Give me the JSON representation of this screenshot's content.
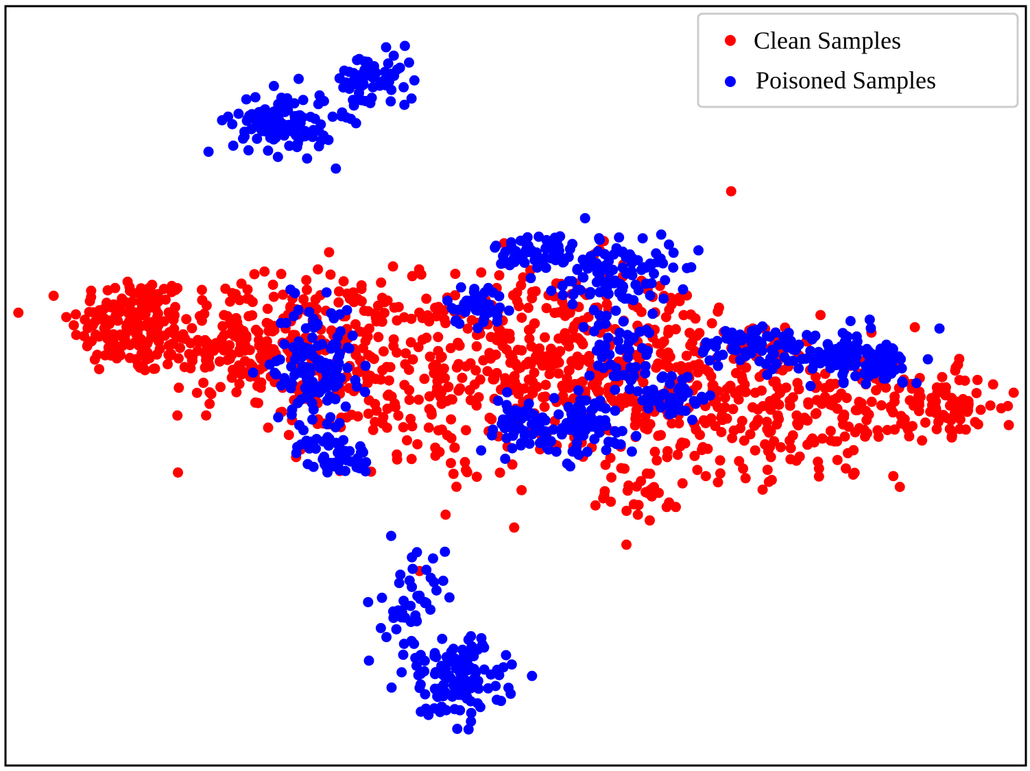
{
  "chart_data": {
    "type": "scatter",
    "title": "",
    "xlabel": "",
    "ylabel": "",
    "axes_visible": false,
    "grid": false,
    "xlim": [
      0,
      100
    ],
    "ylim": [
      0,
      74
    ],
    "legend": {
      "placement": "top-right",
      "entries": [
        "Clean Samples",
        "Poisoned Samples"
      ]
    },
    "colors": {
      "clean": "#ff0000",
      "poisoned": "#0000ff"
    },
    "series": [
      {
        "name": "Clean Samples",
        "color": "#ff0000",
        "clusters": [
          {
            "cx": 12,
            "cy": 43,
            "sx": 3.0,
            "sy": 2.5,
            "n": 170
          },
          {
            "cx": 22,
            "cy": 41,
            "sx": 3.5,
            "sy": 3.0,
            "n": 160
          },
          {
            "cx": 32,
            "cy": 40,
            "sx": 4.0,
            "sy": 4.0,
            "n": 170
          },
          {
            "cx": 43,
            "cy": 38,
            "sx": 5.0,
            "sy": 5.0,
            "n": 190
          },
          {
            "cx": 54,
            "cy": 39,
            "sx": 5.0,
            "sy": 5.0,
            "n": 190
          },
          {
            "cx": 63,
            "cy": 39,
            "sx": 5.0,
            "sy": 5.0,
            "n": 170
          },
          {
            "cx": 73,
            "cy": 36,
            "sx": 5.0,
            "sy": 4.0,
            "n": 160
          },
          {
            "cx": 84,
            "cy": 35,
            "sx": 5.0,
            "sy": 3.0,
            "n": 130
          },
          {
            "cx": 93,
            "cy": 35,
            "sx": 2.5,
            "sy": 1.5,
            "n": 60
          },
          {
            "cx": 62,
            "cy": 26,
            "sx": 2.5,
            "sy": 2.0,
            "n": 30
          }
        ]
      },
      {
        "name": "Poisoned Samples",
        "color": "#0000ff",
        "clusters": [
          {
            "cx": 27,
            "cy": 63,
            "sx": 2.5,
            "sy": 1.6,
            "n": 110
          },
          {
            "cx": 36,
            "cy": 67,
            "sx": 2.0,
            "sy": 1.4,
            "n": 70
          },
          {
            "cx": 30,
            "cy": 39,
            "sx": 2.0,
            "sy": 3.0,
            "n": 130
          },
          {
            "cx": 32,
            "cy": 30,
            "sx": 1.8,
            "sy": 1.0,
            "n": 50
          },
          {
            "cx": 46,
            "cy": 45,
            "sx": 1.5,
            "sy": 1.0,
            "n": 40
          },
          {
            "cx": 52,
            "cy": 50,
            "sx": 2.0,
            "sy": 1.2,
            "n": 60
          },
          {
            "cx": 60,
            "cy": 48,
            "sx": 2.8,
            "sy": 2.0,
            "n": 110
          },
          {
            "cx": 57,
            "cy": 33,
            "sx": 2.5,
            "sy": 1.5,
            "n": 80
          },
          {
            "cx": 50,
            "cy": 33,
            "sx": 2.0,
            "sy": 1.4,
            "n": 50
          },
          {
            "cx": 61,
            "cy": 40,
            "sx": 1.8,
            "sy": 2.0,
            "n": 55
          },
          {
            "cx": 66,
            "cy": 36,
            "sx": 1.5,
            "sy": 1.2,
            "n": 40
          },
          {
            "cx": 73,
            "cy": 41,
            "sx": 2.5,
            "sy": 1.0,
            "n": 60
          },
          {
            "cx": 81,
            "cy": 40,
            "sx": 3.0,
            "sy": 1.2,
            "n": 90
          },
          {
            "cx": 86,
            "cy": 39,
            "sx": 2.0,
            "sy": 1.0,
            "n": 50
          },
          {
            "cx": 40,
            "cy": 15,
            "sx": 1.5,
            "sy": 3.0,
            "n": 50
          },
          {
            "cx": 44,
            "cy": 8,
            "sx": 2.5,
            "sy": 2.0,
            "n": 120
          }
        ]
      }
    ]
  }
}
